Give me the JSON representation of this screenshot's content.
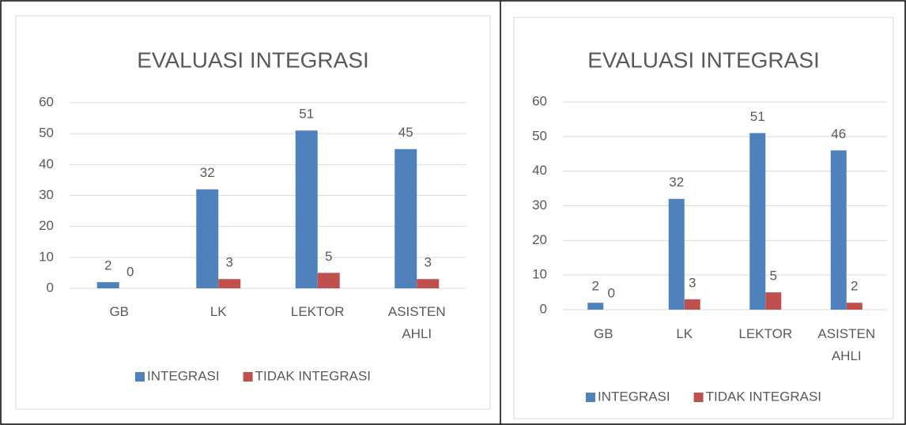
{
  "chart_data": [
    {
      "type": "bar",
      "title": "EVALUASI INTEGRASI",
      "categories": [
        "GB",
        "LK",
        "LEKTOR",
        "ASISTEN AHLI"
      ],
      "series": [
        {
          "name": "INTEGRASI",
          "color": "#4f81bd",
          "values": [
            2,
            32,
            51,
            45
          ]
        },
        {
          "name": "TIDAK INTEGRASI",
          "color": "#c0504d",
          "values": [
            0,
            3,
            5,
            3
          ]
        }
      ],
      "ylim": [
        0,
        60
      ],
      "yticks": [
        0,
        10,
        20,
        30,
        40,
        50,
        60
      ],
      "grid": true,
      "legend": "bottom"
    },
    {
      "type": "bar",
      "title": "EVALUASI INTEGRASI",
      "categories": [
        "GB",
        "LK",
        "LEKTOR",
        "ASISTEN AHLI"
      ],
      "series": [
        {
          "name": "INTEGRASI",
          "color": "#4f81bd",
          "values": [
            2,
            32,
            51,
            46
          ]
        },
        {
          "name": "TIDAK INTEGRASI",
          "color": "#c0504d",
          "values": [
            0,
            3,
            5,
            2
          ]
        }
      ],
      "ylim": [
        0,
        60
      ],
      "yticks": [
        0,
        10,
        20,
        30,
        40,
        50,
        60
      ],
      "grid": true,
      "legend": "bottom"
    }
  ]
}
